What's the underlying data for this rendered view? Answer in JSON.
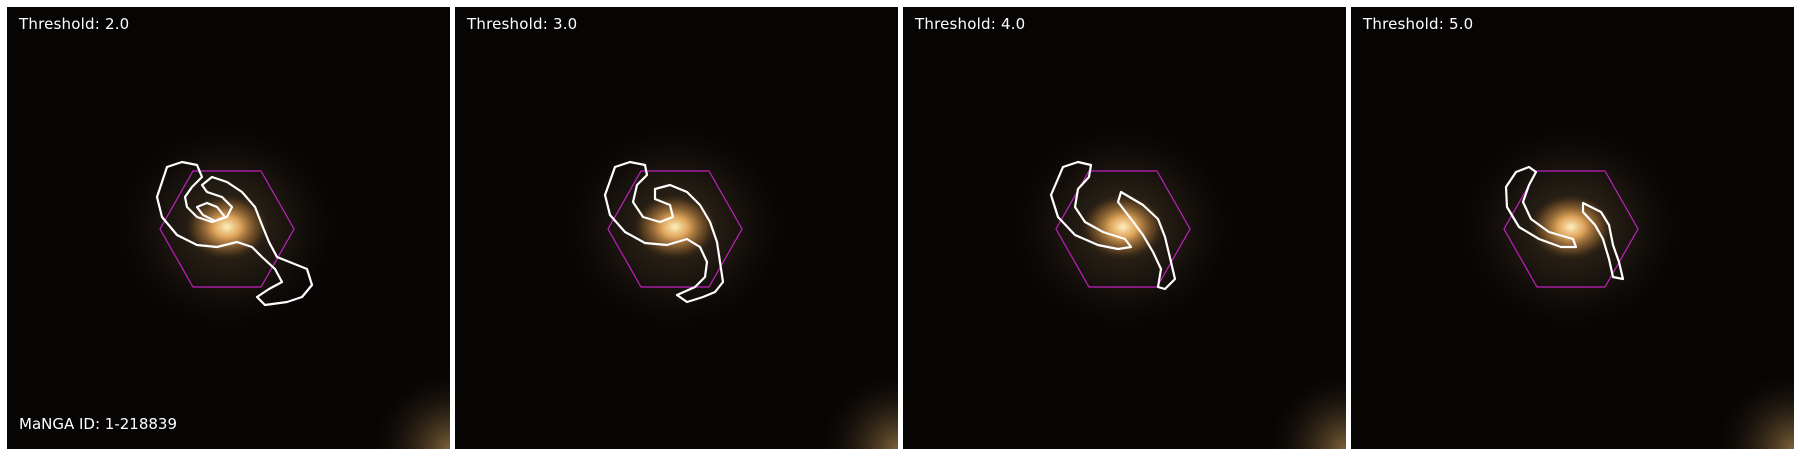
{
  "panels": [
    {
      "threshold_label": "Threshold: 2.0"
    },
    {
      "threshold_label": "Threshold: 3.0"
    },
    {
      "threshold_label": "Threshold: 4.0"
    },
    {
      "threshold_label": "Threshold: 5.0"
    }
  ],
  "manga_id_label": "MaNGA ID: 1-218839",
  "colors": {
    "contour": "#ffffff",
    "hexagon": "#c020c0",
    "galaxy_core": "#ffd890",
    "background": "#050303"
  }
}
